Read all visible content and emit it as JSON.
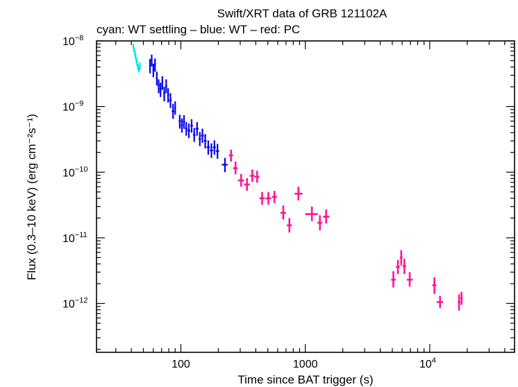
{
  "chart_data": {
    "type": "scatter",
    "title": "Swift/XRT data of GRB 121102A",
    "subtitle": "cyan: WT settling – blue: WT – red: PC",
    "xlabel": "Time since BAT trigger (s)",
    "ylabel": "Flux (0.3–10 keV) (erg cm⁻²s⁻¹)",
    "xscale": "log",
    "yscale": "log",
    "xlim": [
      21,
      48000
    ],
    "ylim": [
      1.8e-13,
      1e-08
    ],
    "grid": false,
    "x_ticks": [
      {
        "value": 100,
        "label": "100"
      },
      {
        "value": 1000,
        "label": "1000"
      },
      {
        "value": 10000,
        "label": "10",
        "exp": "4"
      }
    ],
    "y_ticks": [
      {
        "value": 1e-12,
        "label": "10",
        "exp": "−12"
      },
      {
        "value": 1e-11,
        "label": "10",
        "exp": "−11"
      },
      {
        "value": 1e-10,
        "label": "10",
        "exp": "−10"
      },
      {
        "value": 1e-09,
        "label": "10",
        "exp": "−9"
      },
      {
        "value": 1e-08,
        "label": "10",
        "exp": "−8"
      }
    ],
    "series": [
      {
        "name": "WT settling",
        "color": "#00e5ee",
        "points": [
          {
            "x": 41.5,
            "y": 8.3e-09,
            "xlo": 41.2,
            "xhi": 41.8,
            "ylo": 7.6e-09,
            "yhi": 9e-09
          },
          {
            "x": 42.1,
            "y": 7.3e-09,
            "xlo": 41.8,
            "xhi": 42.4,
            "ylo": 6.7e-09,
            "yhi": 8e-09
          },
          {
            "x": 42.7,
            "y": 6.6e-09,
            "xlo": 42.4,
            "xhi": 43.0,
            "ylo": 6e-09,
            "yhi": 7.2e-09
          },
          {
            "x": 43.3,
            "y": 5.8e-09,
            "xlo": 43.0,
            "xhi": 43.6,
            "ylo": 5.3e-09,
            "yhi": 6.4e-09
          },
          {
            "x": 43.9,
            "y": 5.1e-09,
            "xlo": 43.6,
            "xhi": 44.2,
            "ylo": 4.6e-09,
            "yhi": 5.6e-09
          },
          {
            "x": 44.5,
            "y": 4.5e-09,
            "xlo": 44.2,
            "xhi": 44.8,
            "ylo": 4.1e-09,
            "yhi": 5e-09
          },
          {
            "x": 45.2,
            "y": 4e-09,
            "xlo": 44.8,
            "xhi": 45.6,
            "ylo": 3.6e-09,
            "yhi": 4.5e-09
          },
          {
            "x": 46.0,
            "y": 3.7e-09,
            "xlo": 45.6,
            "xhi": 46.4,
            "ylo": 3.3e-09,
            "yhi": 4.2e-09
          },
          {
            "x": 46.9,
            "y": 4.1e-09,
            "xlo": 46.4,
            "xhi": 47.4,
            "ylo": 3.6e-09,
            "yhi": 4.7e-09
          }
        ]
      },
      {
        "name": "WT",
        "color": "#0000ee",
        "points": [
          {
            "x": 56.5,
            "y": 4.2e-09,
            "xlo": 55.6,
            "xhi": 57.4,
            "ylo": 3.2e-09,
            "yhi": 5.3e-09
          },
          {
            "x": 58.3,
            "y": 5.1e-09,
            "xlo": 57.4,
            "xhi": 59.2,
            "ylo": 4.1e-09,
            "yhi": 6.2e-09
          },
          {
            "x": 60.1,
            "y": 3.6e-09,
            "xlo": 59.2,
            "xhi": 61.0,
            "ylo": 2.8e-09,
            "yhi": 4.5e-09
          },
          {
            "x": 62.0,
            "y": 4.4e-09,
            "xlo": 61.0,
            "xhi": 63.0,
            "ylo": 3.4e-09,
            "yhi": 5.4e-09
          },
          {
            "x": 64.1,
            "y": 2.7e-09,
            "xlo": 63.0,
            "xhi": 65.2,
            "ylo": 2.1e-09,
            "yhi": 3.4e-09
          },
          {
            "x": 66.3,
            "y": 2.1e-09,
            "xlo": 65.2,
            "xhi": 67.4,
            "ylo": 1.6e-09,
            "yhi": 2.6e-09
          },
          {
            "x": 68.6,
            "y": 1.85e-09,
            "xlo": 67.4,
            "xhi": 69.8,
            "ylo": 1.4e-09,
            "yhi": 2.3e-09
          },
          {
            "x": 71.0,
            "y": 2.3e-09,
            "xlo": 69.8,
            "xhi": 72.2,
            "ylo": 1.8e-09,
            "yhi": 2.9e-09
          },
          {
            "x": 73.5,
            "y": 1.6e-09,
            "xlo": 72.2,
            "xhi": 74.8,
            "ylo": 1.2e-09,
            "yhi": 2e-09
          },
          {
            "x": 76.2,
            "y": 2.05e-09,
            "xlo": 74.8,
            "xhi": 77.6,
            "ylo": 1.6e-09,
            "yhi": 2.6e-09
          },
          {
            "x": 79.0,
            "y": 1.5e-09,
            "xlo": 77.6,
            "xhi": 80.5,
            "ylo": 1.15e-09,
            "yhi": 1.9e-09
          },
          {
            "x": 82.5,
            "y": 1.25e-09,
            "xlo": 80.5,
            "xhi": 84.5,
            "ylo": 9.5e-10,
            "yhi": 1.6e-09
          },
          {
            "x": 86.5,
            "y": 8.5e-10,
            "xlo": 84.5,
            "xhi": 88.5,
            "ylo": 6.5e-10,
            "yhi": 1.1e-09
          },
          {
            "x": 90.0,
            "y": 9.5e-10,
            "xlo": 88.5,
            "xhi": 91.5,
            "ylo": 7.5e-10,
            "yhi": 1.2e-09
          },
          {
            "x": 98.0,
            "y": 6e-10,
            "xlo": 96.0,
            "xhi": 100.0,
            "ylo": 4.6e-10,
            "yhi": 7.5e-10
          },
          {
            "x": 102.0,
            "y": 5.2e-10,
            "xlo": 100.0,
            "xhi": 104.0,
            "ylo": 4e-10,
            "yhi": 6.6e-10
          },
          {
            "x": 106.0,
            "y": 5.9e-10,
            "xlo": 104.0,
            "xhi": 108.0,
            "ylo": 4.6e-10,
            "yhi": 7.4e-10
          },
          {
            "x": 110.5,
            "y": 4.6e-10,
            "xlo": 108.0,
            "xhi": 113.0,
            "ylo": 3.6e-10,
            "yhi": 5.8e-10
          },
          {
            "x": 116.0,
            "y": 4.3e-10,
            "xlo": 113.0,
            "xhi": 119.0,
            "ylo": 3.3e-10,
            "yhi": 5.5e-10
          },
          {
            "x": 122.0,
            "y": 5.1e-10,
            "xlo": 119.0,
            "xhi": 125.0,
            "ylo": 4e-10,
            "yhi": 6.4e-10
          },
          {
            "x": 128.0,
            "y": 3.7e-10,
            "xlo": 125.0,
            "xhi": 131.0,
            "ylo": 2.9e-10,
            "yhi": 4.7e-10
          },
          {
            "x": 135.0,
            "y": 4.6e-10,
            "xlo": 131.0,
            "xhi": 139.0,
            "ylo": 3.6e-10,
            "yhi": 5.8e-10
          },
          {
            "x": 142.0,
            "y": 3.2e-10,
            "xlo": 139.0,
            "xhi": 145.0,
            "ylo": 2.5e-10,
            "yhi": 4.1e-10
          },
          {
            "x": 149.0,
            "y": 3.6e-10,
            "xlo": 145.0,
            "xhi": 153.0,
            "ylo": 2.8e-10,
            "yhi": 4.6e-10
          },
          {
            "x": 157.0,
            "y": 3e-10,
            "xlo": 153.0,
            "xhi": 161.0,
            "ylo": 2.3e-10,
            "yhi": 3.8e-10
          },
          {
            "x": 166.0,
            "y": 2.4e-10,
            "xlo": 161.0,
            "xhi": 171.0,
            "ylo": 1.85e-10,
            "yhi": 3.05e-10
          },
          {
            "x": 176.0,
            "y": 2.15e-10,
            "xlo": 171.0,
            "xhi": 181.0,
            "ylo": 1.65e-10,
            "yhi": 2.75e-10
          },
          {
            "x": 186.0,
            "y": 2.4e-10,
            "xlo": 181.0,
            "xhi": 191.0,
            "ylo": 1.85e-10,
            "yhi": 3.05e-10
          },
          {
            "x": 197.0,
            "y": 2.1e-10,
            "xlo": 191.0,
            "xhi": 203.0,
            "ylo": 1.6e-10,
            "yhi": 2.7e-10
          },
          {
            "x": 226.0,
            "y": 1.3e-10,
            "xlo": 213.0,
            "xhi": 238.0,
            "ylo": 1e-10,
            "yhi": 1.65e-10
          }
        ]
      },
      {
        "name": "PC",
        "color": "#ff1493",
        "points": [
          {
            "x": 253,
            "y": 1.8e-10,
            "xlo": 243,
            "xhi": 263,
            "ylo": 1.45e-10,
            "yhi": 2.2e-10
          },
          {
            "x": 275,
            "y": 1.15e-10,
            "xlo": 263,
            "xhi": 287,
            "ylo": 9.3e-11,
            "yhi": 1.45e-10
          },
          {
            "x": 305,
            "y": 7.5e-11,
            "xlo": 288,
            "xhi": 322,
            "ylo": 6e-11,
            "yhi": 9.4e-11
          },
          {
            "x": 340,
            "y": 6.5e-11,
            "xlo": 322,
            "xhi": 358,
            "ylo": 5.2e-11,
            "yhi": 8.1e-11
          },
          {
            "x": 375,
            "y": 8.8e-11,
            "xlo": 358,
            "xhi": 392,
            "ylo": 7.1e-11,
            "yhi": 1.1e-10
          },
          {
            "x": 410,
            "y": 8.5e-11,
            "xlo": 392,
            "xhi": 428,
            "ylo": 6.9e-11,
            "yhi": 1.05e-10
          },
          {
            "x": 450,
            "y": 4e-11,
            "xlo": 428,
            "xhi": 472,
            "ylo": 3.2e-11,
            "yhi": 5e-11
          },
          {
            "x": 505,
            "y": 4e-11,
            "xlo": 478,
            "xhi": 532,
            "ylo": 3.2e-11,
            "yhi": 5e-11
          },
          {
            "x": 565,
            "y": 4.2e-11,
            "xlo": 540,
            "xhi": 592,
            "ylo": 3.4e-11,
            "yhi": 5.2e-11
          },
          {
            "x": 665,
            "y": 2.4e-11,
            "xlo": 630,
            "xhi": 700,
            "ylo": 1.9e-11,
            "yhi": 3.1e-11
          },
          {
            "x": 745,
            "y": 1.55e-11,
            "xlo": 710,
            "xhi": 780,
            "ylo": 1.2e-11,
            "yhi": 2e-11
          },
          {
            "x": 880,
            "y": 4.7e-11,
            "xlo": 820,
            "xhi": 950,
            "ylo": 3.7e-11,
            "yhi": 6e-11
          },
          {
            "x": 1130,
            "y": 2.3e-11,
            "xlo": 1000,
            "xhi": 1260,
            "ylo": 1.8e-11,
            "yhi": 3e-11
          },
          {
            "x": 1310,
            "y": 1.7e-11,
            "xlo": 1250,
            "xhi": 1370,
            "ylo": 1.3e-11,
            "yhi": 2.2e-11
          },
          {
            "x": 1470,
            "y": 2.1e-11,
            "xlo": 1390,
            "xhi": 1560,
            "ylo": 1.65e-11,
            "yhi": 2.7e-11
          },
          {
            "x": 5100,
            "y": 2.3e-12,
            "xlo": 4900,
            "xhi": 5350,
            "ylo": 1.75e-12,
            "yhi": 3.1e-12
          },
          {
            "x": 5550,
            "y": 3.6e-12,
            "xlo": 5350,
            "xhi": 5750,
            "ylo": 2.8e-12,
            "yhi": 4.6e-12
          },
          {
            "x": 5900,
            "y": 5e-12,
            "xlo": 5750,
            "xhi": 6050,
            "ylo": 3.8e-12,
            "yhi": 6.5e-12
          },
          {
            "x": 6250,
            "y": 3.7e-12,
            "xlo": 6050,
            "xhi": 6450,
            "ylo": 2.8e-12,
            "yhi": 4.8e-12
          },
          {
            "x": 6900,
            "y": 2.3e-12,
            "xlo": 6550,
            "xhi": 7300,
            "ylo": 1.8e-12,
            "yhi": 3e-12
          },
          {
            "x": 10900,
            "y": 1.9e-12,
            "xlo": 10500,
            "xhi": 11300,
            "ylo": 1.4e-12,
            "yhi": 2.5e-12
          },
          {
            "x": 12100,
            "y": 1.05e-12,
            "xlo": 11400,
            "xhi": 12800,
            "ylo": 8.5e-13,
            "yhi": 1.3e-12
          },
          {
            "x": 17200,
            "y": 1.05e-12,
            "xlo": 16800,
            "xhi": 17600,
            "ylo": 7.8e-13,
            "yhi": 1.38e-12
          },
          {
            "x": 18000,
            "y": 1.2e-12,
            "xlo": 17600,
            "xhi": 18400,
            "ylo": 9.5e-13,
            "yhi": 1.5e-12
          }
        ]
      }
    ]
  }
}
